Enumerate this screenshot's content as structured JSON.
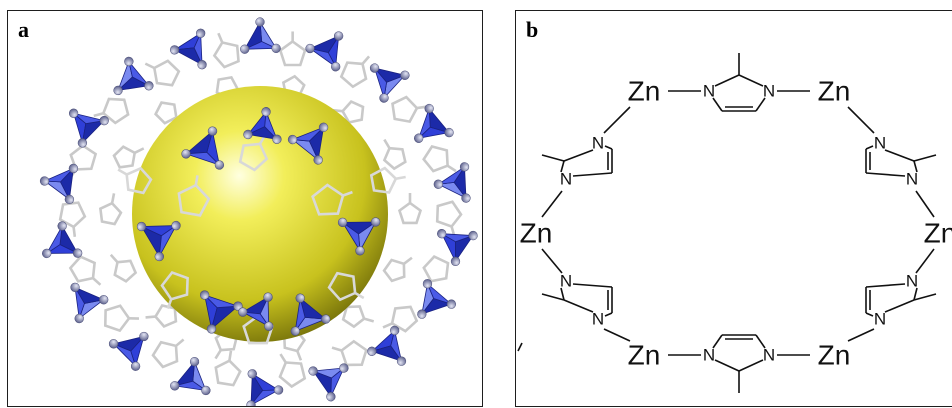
{
  "panel_a": {
    "label": "a"
  },
  "panel_b": {
    "label": "b",
    "atoms": {
      "zn": "Zn",
      "n": "N"
    }
  },
  "colors": {
    "tetrahedron": "#2f3fd8",
    "tetrahedron_light": "#7a8af0",
    "sphere": "#e6e236",
    "node": "#8a8fb5",
    "linker": "#bcbcbc",
    "frame": "#1e1e1e"
  }
}
